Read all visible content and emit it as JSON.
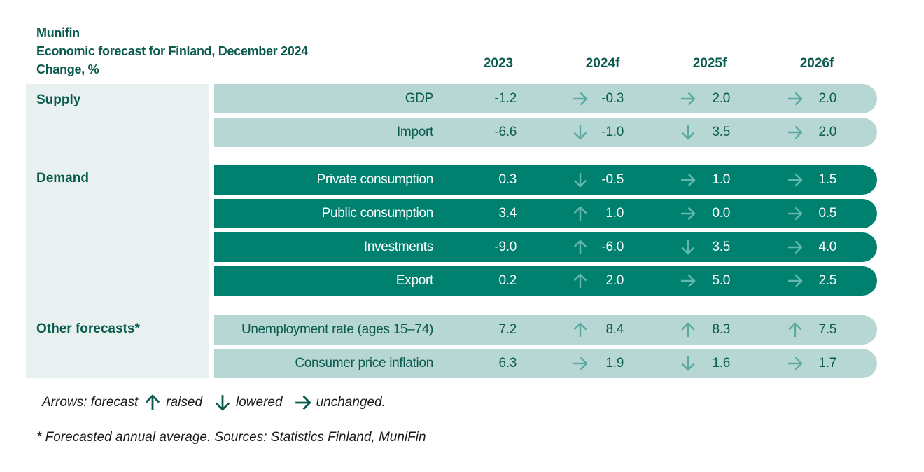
{
  "title": {
    "line1": "Munifin",
    "line2": "Economic forecast for Finland, December  2024",
    "line3": "Change, %"
  },
  "colors": {
    "light_row": "#b6d7d3",
    "dark_row": "#00806f",
    "panel": "#e8f1ef",
    "text": "#0b5a4e"
  },
  "chart_data": {
    "type": "table",
    "columns": [
      "2023",
      "2024f",
      "2025f",
      "2026f"
    ],
    "groups": [
      {
        "name": "Supply",
        "style": "light",
        "rows": [
          {
            "label": "GDP",
            "v2023": "-1.2",
            "cells": [
              {
                "arrow": "unchanged",
                "value": "-0.3"
              },
              {
                "arrow": "unchanged",
                "value": "2.0"
              },
              {
                "arrow": "unchanged",
                "value": "2.0"
              }
            ]
          },
          {
            "label": "Import",
            "v2023": "-6.6",
            "cells": [
              {
                "arrow": "lowered",
                "value": "-1.0"
              },
              {
                "arrow": "lowered",
                "value": "3.5"
              },
              {
                "arrow": "unchanged",
                "value": "2.0"
              }
            ]
          }
        ]
      },
      {
        "name": "Demand",
        "style": "dark",
        "rows": [
          {
            "label": "Private consumption",
            "v2023": "0.3",
            "cells": [
              {
                "arrow": "lowered",
                "value": "-0.5"
              },
              {
                "arrow": "unchanged",
                "value": "1.0"
              },
              {
                "arrow": "unchanged",
                "value": "1.5"
              }
            ]
          },
          {
            "label": "Public consumption",
            "v2023": "3.4",
            "cells": [
              {
                "arrow": "raised",
                "value": "1.0"
              },
              {
                "arrow": "unchanged",
                "value": "0.0"
              },
              {
                "arrow": "unchanged",
                "value": "0.5"
              }
            ]
          },
          {
            "label": "Investments",
            "v2023": "-9.0",
            "cells": [
              {
                "arrow": "raised",
                "value": "-6.0"
              },
              {
                "arrow": "lowered",
                "value": "3.5"
              },
              {
                "arrow": "unchanged",
                "value": "4.0"
              }
            ]
          },
          {
            "label": "Export",
            "v2023": "0.2",
            "cells": [
              {
                "arrow": "raised",
                "value": "2.0"
              },
              {
                "arrow": "unchanged",
                "value": "5.0"
              },
              {
                "arrow": "unchanged",
                "value": "2.5"
              }
            ]
          }
        ]
      },
      {
        "name": "Other forecasts*",
        "style": "light",
        "rows": [
          {
            "label": "Unemployment rate (ages 15–74)",
            "v2023": "7.2",
            "cells": [
              {
                "arrow": "raised",
                "value": "8.4"
              },
              {
                "arrow": "raised",
                "value": "8.3"
              },
              {
                "arrow": "raised",
                "value": "7.5"
              }
            ]
          },
          {
            "label": "Consumer price inflation",
            "v2023": "6.3",
            "cells": [
              {
                "arrow": "unchanged",
                "value": "1.9"
              },
              {
                "arrow": "lowered",
                "value": "1.6"
              },
              {
                "arrow": "unchanged",
                "value": "1.7"
              }
            ]
          }
        ]
      }
    ]
  },
  "legend": {
    "prefix": "Arrows: forecast",
    "raised": "raised",
    "lowered": "lowered",
    "unchanged": "unchanged."
  },
  "footnote": "* Forecasted annual average. Sources: Statistics Finland, MuniFin"
}
